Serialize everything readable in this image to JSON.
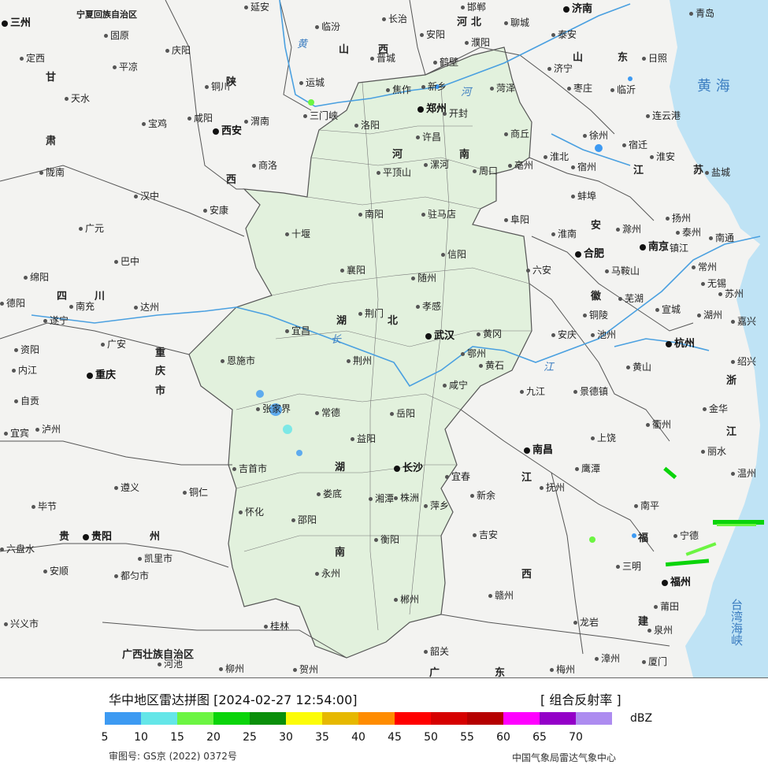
{
  "map": {
    "sea_labels": [
      {
        "id": "yellow-sea",
        "text": "黄 海"
      },
      {
        "id": "taiwan-strait",
        "text": "台湾海峡"
      }
    ],
    "river_labels": [
      {
        "id": "huanghe-1",
        "text": "黄"
      },
      {
        "id": "huanghe-2",
        "text": "河"
      },
      {
        "id": "changjiang-1",
        "text": "长"
      },
      {
        "id": "changjiang-2",
        "text": "江"
      }
    ],
    "province_labels": [
      {
        "id": "ningxia",
        "text": "宁夏回族自治区"
      },
      {
        "id": "gansu-1",
        "text": "甘"
      },
      {
        "id": "gansu-2",
        "text": "肃"
      },
      {
        "id": "shaanxi-1",
        "text": "陕"
      },
      {
        "id": "shaanxi-2",
        "text": "西"
      },
      {
        "id": "shanxi-1",
        "text": "山"
      },
      {
        "id": "shanxi-2",
        "text": "西"
      },
      {
        "id": "hebei-1",
        "text": "河"
      },
      {
        "id": "hebei-2",
        "text": "北"
      },
      {
        "id": "shandong-1",
        "text": "山"
      },
      {
        "id": "shandong-2",
        "text": "东"
      },
      {
        "id": "henan-1",
        "text": "河"
      },
      {
        "id": "henan-2",
        "text": "南"
      },
      {
        "id": "jiangsu-1",
        "text": "江"
      },
      {
        "id": "jiangsu-2",
        "text": "苏"
      },
      {
        "id": "anhui-1",
        "text": "安"
      },
      {
        "id": "anhui-2",
        "text": "徽"
      },
      {
        "id": "sichuan-1",
        "text": "四"
      },
      {
        "id": "sichuan-2",
        "text": "川"
      },
      {
        "id": "hubei-1",
        "text": "湖"
      },
      {
        "id": "hubei-2",
        "text": "北"
      },
      {
        "id": "chongqing-1",
        "text": "重"
      },
      {
        "id": "chongqing-2",
        "text": "庆"
      },
      {
        "id": "chongqing-3",
        "text": "市"
      },
      {
        "id": "hunan-1",
        "text": "湖"
      },
      {
        "id": "hunan-2",
        "text": "南"
      },
      {
        "id": "jiangxi-1",
        "text": "江"
      },
      {
        "id": "jiangxi-2",
        "text": "西"
      },
      {
        "id": "zhejiang-1",
        "text": "浙"
      },
      {
        "id": "zhejiang-2",
        "text": "江"
      },
      {
        "id": "fujian-1",
        "text": "福"
      },
      {
        "id": "fujian-2",
        "text": "建"
      },
      {
        "id": "guizhou-1",
        "text": "贵"
      },
      {
        "id": "guizhou-2",
        "text": "州"
      },
      {
        "id": "guangxi",
        "text": "广西壮族自治区"
      },
      {
        "id": "guangdong-1",
        "text": "广"
      },
      {
        "id": "guangdong-2",
        "text": "东"
      }
    ],
    "capitals": [
      {
        "id": "xian",
        "text": "西安"
      },
      {
        "id": "zhengzhou",
        "text": "郑州"
      },
      {
        "id": "jinan",
        "text": "济南"
      },
      {
        "id": "hefei",
        "text": "合肥"
      },
      {
        "id": "nanjing",
        "text": "南京"
      },
      {
        "id": "wuhan",
        "text": "武汉"
      },
      {
        "id": "hangzhou",
        "text": "杭州"
      },
      {
        "id": "changsha",
        "text": "长沙"
      },
      {
        "id": "nanchang",
        "text": "南昌"
      },
      {
        "id": "chongqing",
        "text": "重庆"
      },
      {
        "id": "guiyang",
        "text": "贵阳"
      },
      {
        "id": "fuzhou",
        "text": "福州"
      },
      {
        "id": "lanzhou",
        "text": "三州"
      }
    ],
    "cities": [
      {
        "id": "c1",
        "text": "延安"
      },
      {
        "id": "c2",
        "text": "长治"
      },
      {
        "id": "c3",
        "text": "邯郸"
      },
      {
        "id": "c4",
        "text": "青岛"
      },
      {
        "id": "c5",
        "text": "固原"
      },
      {
        "id": "c6",
        "text": "临汾"
      },
      {
        "id": "c7",
        "text": "安阳"
      },
      {
        "id": "c8",
        "text": "聊城"
      },
      {
        "id": "c9",
        "text": "泰安"
      },
      {
        "id": "c10",
        "text": "定西"
      },
      {
        "id": "c11",
        "text": "庆阳"
      },
      {
        "id": "c12",
        "text": "晋城"
      },
      {
        "id": "c13",
        "text": "濮阳"
      },
      {
        "id": "c14",
        "text": "鹤壁"
      },
      {
        "id": "c15",
        "text": "日照"
      },
      {
        "id": "c16",
        "text": "平凉"
      },
      {
        "id": "c17",
        "text": "济宁"
      },
      {
        "id": "c18",
        "text": "铜川"
      },
      {
        "id": "c19",
        "text": "运城"
      },
      {
        "id": "c20",
        "text": "新乡"
      },
      {
        "id": "c21",
        "text": "菏泽"
      },
      {
        "id": "c22",
        "text": "枣庄"
      },
      {
        "id": "c23",
        "text": "临沂"
      },
      {
        "id": "c24",
        "text": "天水"
      },
      {
        "id": "c25",
        "text": "焦作"
      },
      {
        "id": "c26",
        "text": "三门峡"
      },
      {
        "id": "c27",
        "text": "开封"
      },
      {
        "id": "c28",
        "text": "连云港"
      },
      {
        "id": "c29",
        "text": "宝鸡"
      },
      {
        "id": "c30",
        "text": "咸阳"
      },
      {
        "id": "c31",
        "text": "渭南"
      },
      {
        "id": "c32",
        "text": "洛阳"
      },
      {
        "id": "c33",
        "text": "商丘"
      },
      {
        "id": "c34",
        "text": "徐州"
      },
      {
        "id": "c35",
        "text": "宿迁"
      },
      {
        "id": "c36",
        "text": "许昌"
      },
      {
        "id": "c37",
        "text": "淮北"
      },
      {
        "id": "c38",
        "text": "淮安"
      },
      {
        "id": "c39",
        "text": "陇南"
      },
      {
        "id": "c40",
        "text": "商洛"
      },
      {
        "id": "c41",
        "text": "平顶山"
      },
      {
        "id": "c42",
        "text": "漯河"
      },
      {
        "id": "c43",
        "text": "周口"
      },
      {
        "id": "c44",
        "text": "亳州"
      },
      {
        "id": "c45",
        "text": "宿州"
      },
      {
        "id": "c46",
        "text": "盐城"
      },
      {
        "id": "c47",
        "text": "汉中"
      },
      {
        "id": "c48",
        "text": "蚌埠"
      },
      {
        "id": "c49",
        "text": "安康"
      },
      {
        "id": "c50",
        "text": "南阳"
      },
      {
        "id": "c51",
        "text": "驻马店"
      },
      {
        "id": "c52",
        "text": "阜阳"
      },
      {
        "id": "c53",
        "text": "扬州"
      },
      {
        "id": "c54",
        "text": "广元"
      },
      {
        "id": "c55",
        "text": "十堰"
      },
      {
        "id": "c56",
        "text": "淮南"
      },
      {
        "id": "c57",
        "text": "滁州"
      },
      {
        "id": "c58",
        "text": "泰州"
      },
      {
        "id": "c59",
        "text": "南通"
      },
      {
        "id": "c60",
        "text": "信阳"
      },
      {
        "id": "c61",
        "text": "镇江"
      },
      {
        "id": "c62",
        "text": "巴中"
      },
      {
        "id": "c63",
        "text": "六安"
      },
      {
        "id": "c64",
        "text": "常州"
      },
      {
        "id": "c65",
        "text": "绵阳"
      },
      {
        "id": "c66",
        "text": "襄阳"
      },
      {
        "id": "c67",
        "text": "随州"
      },
      {
        "id": "c68",
        "text": "马鞍山"
      },
      {
        "id": "c69",
        "text": "无锡"
      },
      {
        "id": "c70",
        "text": "南充"
      },
      {
        "id": "c71",
        "text": "苏州"
      },
      {
        "id": "c72",
        "text": "德阳"
      },
      {
        "id": "c73",
        "text": "芜湖"
      },
      {
        "id": "c74",
        "text": "达州"
      },
      {
        "id": "c75",
        "text": "孝感"
      },
      {
        "id": "c76",
        "text": "宣城"
      },
      {
        "id": "c77",
        "text": "遂宁"
      },
      {
        "id": "c78",
        "text": "荆门"
      },
      {
        "id": "c79",
        "text": "铜陵"
      },
      {
        "id": "c80",
        "text": "湖州"
      },
      {
        "id": "c81",
        "text": "嘉兴"
      },
      {
        "id": "c82",
        "text": "广安"
      },
      {
        "id": "c83",
        "text": "宜昌"
      },
      {
        "id": "c84",
        "text": "黄冈"
      },
      {
        "id": "c85",
        "text": "安庆"
      },
      {
        "id": "c86",
        "text": "池州"
      },
      {
        "id": "c87",
        "text": "资阳"
      },
      {
        "id": "c88",
        "text": "鄂州"
      },
      {
        "id": "c89",
        "text": "恩施市"
      },
      {
        "id": "c90",
        "text": "荆州"
      },
      {
        "id": "c91",
        "text": "黄石"
      },
      {
        "id": "c92",
        "text": "绍兴"
      },
      {
        "id": "c93",
        "text": "内江"
      },
      {
        "id": "c94",
        "text": "黄山"
      },
      {
        "id": "c95",
        "text": "咸宁"
      },
      {
        "id": "c96",
        "text": "九江"
      },
      {
        "id": "c97",
        "text": "景德镇"
      },
      {
        "id": "c98",
        "text": "自贡"
      },
      {
        "id": "c99",
        "text": "张家界"
      },
      {
        "id": "c100",
        "text": "岳阳"
      },
      {
        "id": "c101",
        "text": "金华"
      },
      {
        "id": "c102",
        "text": "泸州"
      },
      {
        "id": "c103",
        "text": "常德"
      },
      {
        "id": "c104",
        "text": "衢州"
      },
      {
        "id": "c105",
        "text": "宜宾"
      },
      {
        "id": "c106",
        "text": "益阳"
      },
      {
        "id": "c107",
        "text": "上饶"
      },
      {
        "id": "c108",
        "text": "丽水"
      },
      {
        "id": "c109",
        "text": "鹰潭"
      },
      {
        "id": "c110",
        "text": "温州"
      },
      {
        "id": "c111",
        "text": "吉首市"
      },
      {
        "id": "c112",
        "text": "遵义"
      },
      {
        "id": "c113",
        "text": "宜春"
      },
      {
        "id": "c114",
        "text": "新余"
      },
      {
        "id": "c115",
        "text": "抚州"
      },
      {
        "id": "c116",
        "text": "铜仁"
      },
      {
        "id": "c117",
        "text": "娄底"
      },
      {
        "id": "c118",
        "text": "湘潭"
      },
      {
        "id": "c119",
        "text": "株洲"
      },
      {
        "id": "c120",
        "text": "萍乡"
      },
      {
        "id": "c121",
        "text": "毕节"
      },
      {
        "id": "c122",
        "text": "怀化"
      },
      {
        "id": "c123",
        "text": "邵阳"
      },
      {
        "id": "c124",
        "text": "南平"
      },
      {
        "id": "c125",
        "text": "六盘水"
      },
      {
        "id": "c126",
        "text": "吉安"
      },
      {
        "id": "c127",
        "text": "衡阳"
      },
      {
        "id": "c128",
        "text": "宁德"
      },
      {
        "id": "c129",
        "text": "凯里市"
      },
      {
        "id": "c130",
        "text": "安顺"
      },
      {
        "id": "c131",
        "text": "都匀市"
      },
      {
        "id": "c132",
        "text": "永州"
      },
      {
        "id": "c133",
        "text": "三明"
      },
      {
        "id": "c134",
        "text": "赣州"
      },
      {
        "id": "c135",
        "text": "郴州"
      },
      {
        "id": "c136",
        "text": "莆田"
      },
      {
        "id": "c137",
        "text": "兴义市"
      },
      {
        "id": "c138",
        "text": "桂林"
      },
      {
        "id": "c139",
        "text": "龙岩"
      },
      {
        "id": "c140",
        "text": "泉州"
      },
      {
        "id": "c141",
        "text": "韶关"
      },
      {
        "id": "c142",
        "text": "河池"
      },
      {
        "id": "c143",
        "text": "柳州"
      },
      {
        "id": "c144",
        "text": "贺州"
      },
      {
        "id": "c145",
        "text": "梅州"
      },
      {
        "id": "c146",
        "text": "漳州"
      },
      {
        "id": "c147",
        "text": "厦门"
      }
    ]
  },
  "footer": {
    "title": "华中地区雷达拼图 [2024-02-27 12:54:00]",
    "product": "[ 组合反射率 ]",
    "unit": "dBZ",
    "approval": "审图号: GS京 (2022) 0372号",
    "source": "中国气象局雷达气象中心",
    "legend": {
      "colors": [
        "#3d9af2",
        "#64e6e8",
        "#6cf542",
        "#0ad40a",
        "#0a8f0a",
        "#fcfc07",
        "#e6b800",
        "#ff8c00",
        "#ff0000",
        "#d60000",
        "#b50000",
        "#ff00ff",
        "#9400c8",
        "#ad8cf0"
      ],
      "ticks": [
        "5",
        "10",
        "15",
        "20",
        "25",
        "30",
        "35",
        "40",
        "45",
        "50",
        "55",
        "60",
        "65",
        "70"
      ]
    }
  }
}
